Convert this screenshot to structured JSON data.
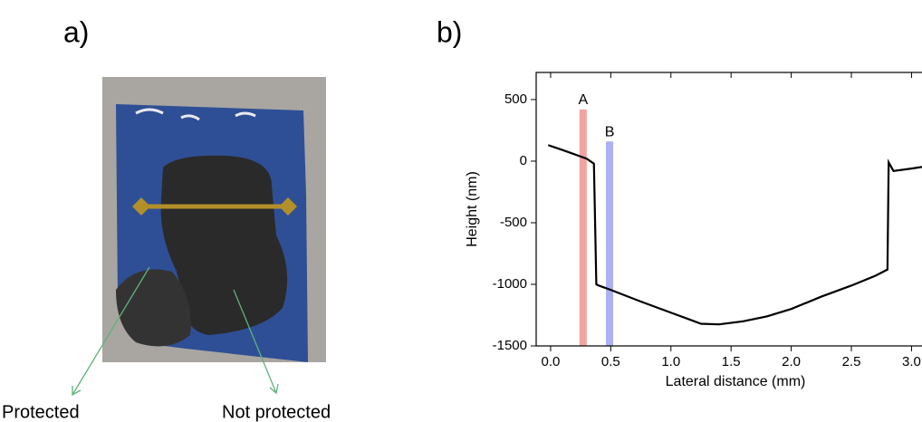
{
  "panel_labels": [
    "a)",
    "b)"
  ],
  "annotations": [
    "Protected",
    "Not protected"
  ],
  "chart_data": {
    "type": "line",
    "xlabel": "Lateral distance (mm)",
    "ylabel": "Height (nm)",
    "series": [
      {
        "color": "#000000",
        "x": [
          -0.02,
          0.1,
          0.2,
          0.3,
          0.36,
          0.38,
          0.4,
          0.5,
          0.75,
          1.0,
          1.25,
          1.4,
          1.6,
          1.8,
          2.0,
          2.25,
          2.5,
          2.7,
          2.8,
          2.81,
          2.85,
          3.0,
          3.2
        ],
        "values": [
          130,
          90,
          55,
          20,
          -20,
          -1000,
          -1010,
          -1045,
          -1140,
          -1230,
          -1320,
          -1325,
          -1300,
          -1260,
          -1200,
          -1100,
          -1010,
          -930,
          -880,
          -10,
          -80,
          -60,
          -30
        ]
      }
    ],
    "markers": [
      {
        "label": "A",
        "x": 0.27,
        "top": 420,
        "color": "#f4a3a3"
      },
      {
        "label": "B",
        "x": 0.49,
        "top": 160,
        "color": "#aab2f0"
      }
    ],
    "xlim": [
      -0.12,
      3.2
    ],
    "ylim": [
      -1500,
      720
    ],
    "xticks": [
      {
        "value": 0,
        "label": "0.0"
      },
      0.5,
      {
        "value": 1,
        "label": "1.0"
      },
      1.5,
      {
        "value": 2,
        "label": "2.0"
      },
      2.5,
      {
        "value": 3,
        "label": "3.0"
      }
    ],
    "yticks": [
      -1500,
      -1000,
      -500,
      0,
      500
    ]
  }
}
